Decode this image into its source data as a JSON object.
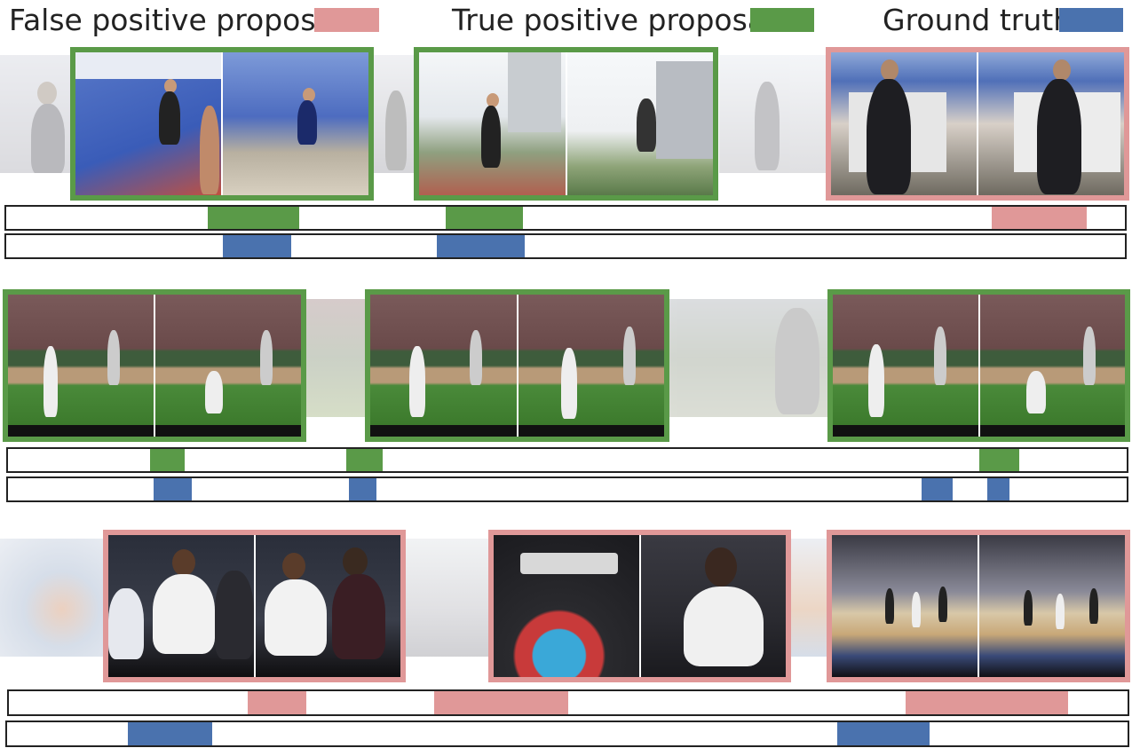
{
  "legend": {
    "false_positive": {
      "label": "False positive proposal",
      "color": "#e09898"
    },
    "true_positive": {
      "label": "True positive proposal",
      "color": "#5a9a48"
    },
    "ground_truth": {
      "label": "Ground truth",
      "color": "#4a72ae"
    }
  },
  "colors": {
    "true_positive_frame": "#5a9a48",
    "false_positive_frame": "#e09898",
    "track_border": "#222222"
  },
  "rows": [
    {
      "name": "row-long-jump",
      "scenes": [
        "athletics-track",
        "athletics-track",
        "athletics-stadium",
        "athletics-stadium",
        "interview",
        "interview"
      ],
      "proposal_frames": [
        "true-positive",
        "true-positive",
        "false-positive"
      ]
    },
    {
      "name": "row-baseball",
      "scenes": [
        "baseball-pitch",
        "baseball-pitch",
        "baseball-pitch",
        "baseball-pitch",
        "baseball-pitch",
        "baseball-pitch"
      ],
      "proposal_frames": [
        "true-positive",
        "true-positive",
        "true-positive"
      ]
    },
    {
      "name": "row-basketball",
      "scenes": [
        "courtside-crowd",
        "courtside-crowd",
        "ball-closeup",
        "courtside-crowd",
        "basketball-court",
        "basketball-court"
      ],
      "proposal_frames": [
        "false-positive",
        "false-positive",
        "false-positive"
      ]
    }
  ]
}
